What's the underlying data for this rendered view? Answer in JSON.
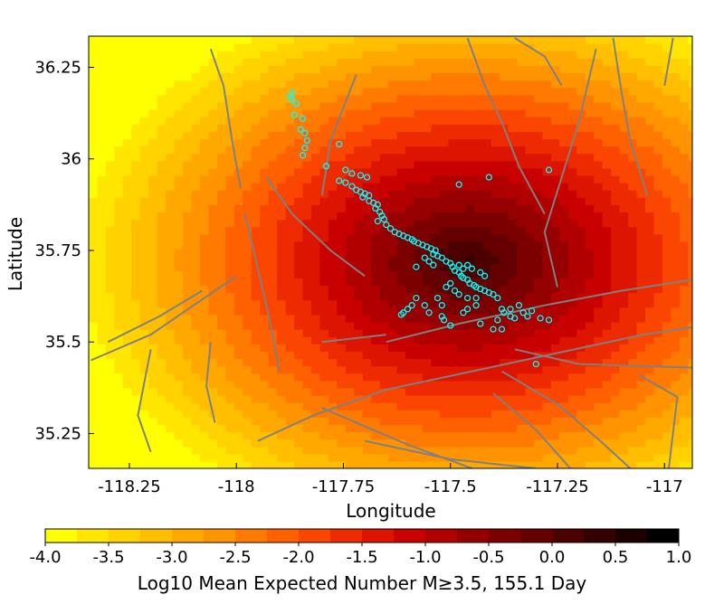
{
  "chart_data": {
    "type": "heatmap",
    "title": "",
    "xlabel": "Longitude",
    "ylabel": "Latitude",
    "xlim": [
      -118.345,
      -116.935
    ],
    "ylim": [
      35.155,
      36.335
    ],
    "x_ticks": [
      -118.25,
      -118,
      -117.75,
      -117.5,
      -117.25,
      -117
    ],
    "x_tick_labels": [
      "-118.25",
      "-118",
      "-117.75",
      "-117.5",
      "-117.25",
      "-117"
    ],
    "y_ticks": [
      35.25,
      35.5,
      35.75,
      36,
      36.25
    ],
    "y_tick_labels": [
      "35.25",
      "35.5",
      "35.75",
      "36",
      "36.25"
    ],
    "field": {
      "peak_lon": -117.46,
      "peak_lat": 35.72,
      "peak_value": 0.3,
      "decay_per_degree": 5.5,
      "floor_value": -4.0,
      "cell_size_deg": 0.02
    },
    "colorbar": {
      "label": "Log10 Mean Expected Number M≥3.5, 155.1 Day",
      "min": -4.0,
      "max": 1.0,
      "tick_values": [
        -4.0,
        -3.5,
        -3.0,
        -2.5,
        -2.0,
        -1.5,
        -1.0,
        -0.5,
        0.0,
        0.5,
        1.0
      ],
      "tick_labels": [
        "-4.0",
        "-3.5",
        "-3.0",
        "-2.5",
        "-2.0",
        "-1.5",
        "-1.0",
        "-0.5",
        "0.0",
        "0.5",
        "1.0"
      ],
      "colors": [
        "#ffff00",
        "#ffe600",
        "#ffd200",
        "#ffbe00",
        "#ffa800",
        "#ff9400",
        "#ff7a00",
        "#ff6000",
        "#fa4600",
        "#ee2a00",
        "#dd1400",
        "#c80000",
        "#b00000",
        "#960000",
        "#7c0000",
        "#640000",
        "#4c0000",
        "#340000",
        "#1c0000",
        "#000000"
      ]
    },
    "fault_color": "#808080",
    "aftershock_color": "#00ffff",
    "fault_traces": [
      [
        [
          -118.34,
          35.45
        ],
        [
          -118.2,
          35.52
        ],
        [
          -118.1,
          35.6
        ],
        [
          -118.0,
          35.68
        ]
      ],
      [
        [
          -118.3,
          35.5
        ],
        [
          -118.18,
          35.57
        ],
        [
          -118.08,
          35.64
        ]
      ],
      [
        [
          -117.95,
          35.23
        ],
        [
          -117.82,
          35.3
        ],
        [
          -117.65,
          35.37
        ],
        [
          -117.45,
          35.42
        ],
        [
          -117.25,
          35.47
        ],
        [
          -117.05,
          35.52
        ],
        [
          -116.935,
          35.54
        ]
      ],
      [
        [
          -117.35,
          35.48
        ],
        [
          -117.2,
          35.44
        ],
        [
          -116.935,
          35.43
        ]
      ],
      [
        [
          -117.8,
          35.32
        ],
        [
          -117.72,
          35.28
        ],
        [
          -117.6,
          35.22
        ],
        [
          -117.45,
          35.155
        ]
      ],
      [
        [
          -117.7,
          35.23
        ],
        [
          -117.5,
          35.18
        ],
        [
          -117.3,
          35.155
        ]
      ],
      [
        [
          -117.38,
          35.42
        ],
        [
          -117.25,
          35.33
        ],
        [
          -117.15,
          35.23
        ],
        [
          -117.08,
          35.155
        ]
      ],
      [
        [
          -117.4,
          35.36
        ],
        [
          -117.3,
          35.26
        ],
        [
          -117.22,
          35.155
        ]
      ],
      [
        [
          -116.97,
          35.35
        ],
        [
          -116.99,
          35.155
        ]
      ],
      [
        [
          -117.06,
          35.41
        ],
        [
          -116.97,
          35.35
        ]
      ],
      [
        [
          -117.65,
          35.5
        ],
        [
          -117.48,
          35.55
        ],
        [
          -117.28,
          35.6
        ],
        [
          -117.1,
          35.64
        ],
        [
          -116.935,
          35.67
        ]
      ],
      [
        [
          -117.8,
          35.5
        ],
        [
          -117.65,
          35.52
        ]
      ],
      [
        [
          -117.98,
          35.85
        ],
        [
          -117.95,
          35.7
        ],
        [
          -117.92,
          35.55
        ],
        [
          -117.9,
          35.42
        ]
      ],
      [
        [
          -117.93,
          35.95
        ],
        [
          -117.87,
          35.85
        ],
        [
          -117.78,
          35.75
        ],
        [
          -117.7,
          35.68
        ]
      ],
      [
        [
          -118.06,
          36.3
        ],
        [
          -118.03,
          36.2
        ],
        [
          -118.01,
          36.05
        ],
        [
          -117.99,
          35.92
        ]
      ],
      [
        [
          -117.72,
          36.23
        ],
        [
          -117.78,
          36.05
        ],
        [
          -117.8,
          35.9
        ]
      ],
      [
        [
          -117.46,
          36.33
        ],
        [
          -117.42,
          36.2
        ],
        [
          -117.38,
          36.1
        ],
        [
          -117.34,
          35.98
        ],
        [
          -117.28,
          35.85
        ]
      ],
      [
        [
          -117.35,
          36.33
        ],
        [
          -117.28,
          36.28
        ],
        [
          -117.24,
          36.2
        ]
      ],
      [
        [
          -117.12,
          36.33
        ],
        [
          -117.1,
          36.18
        ],
        [
          -117.08,
          36.05
        ],
        [
          -117.04,
          35.9
        ]
      ],
      [
        [
          -117.16,
          36.3
        ],
        [
          -117.2,
          36.1
        ],
        [
          -117.24,
          35.95
        ],
        [
          -117.28,
          35.8
        ],
        [
          -117.25,
          35.65
        ]
      ],
      [
        [
          -116.98,
          36.33
        ],
        [
          -117.0,
          36.2
        ]
      ],
      [
        [
          -118.06,
          35.5
        ],
        [
          -118.07,
          35.38
        ],
        [
          -118.05,
          35.28
        ]
      ],
      [
        [
          -118.2,
          35.48
        ],
        [
          -118.23,
          35.3
        ],
        [
          -118.2,
          35.2
        ]
      ]
    ],
    "aftershocks": [
      [
        -117.87,
        36.18
      ],
      [
        -117.875,
        36.17
      ],
      [
        -117.87,
        36.16
      ],
      [
        -117.86,
        36.15
      ],
      [
        -117.865,
        36.12
      ],
      [
        -117.845,
        36.11
      ],
      [
        -117.85,
        36.08
      ],
      [
        -117.84,
        36.07
      ],
      [
        -117.835,
        36.05
      ],
      [
        -117.84,
        36.03
      ],
      [
        -117.845,
        36.01
      ],
      [
        -117.76,
        36.04
      ],
      [
        -117.79,
        35.98
      ],
      [
        -117.745,
        35.97
      ],
      [
        -117.73,
        35.96
      ],
      [
        -117.71,
        35.955
      ],
      [
        -117.695,
        35.95
      ],
      [
        -117.76,
        35.94
      ],
      [
        -117.745,
        35.935
      ],
      [
        -117.73,
        35.925
      ],
      [
        -117.72,
        35.915
      ],
      [
        -117.71,
        35.91
      ],
      [
        -117.7,
        35.905
      ],
      [
        -117.69,
        35.9
      ],
      [
        -117.705,
        35.895
      ],
      [
        -117.69,
        35.885
      ],
      [
        -117.68,
        35.88
      ],
      [
        -117.67,
        35.875
      ],
      [
        -117.675,
        35.865
      ],
      [
        -117.665,
        35.855
      ],
      [
        -117.66,
        35.845
      ],
      [
        -117.655,
        35.835
      ],
      [
        -117.67,
        35.83
      ],
      [
        -117.65,
        35.82
      ],
      [
        -117.64,
        35.81
      ],
      [
        -117.63,
        35.8
      ],
      [
        -117.62,
        35.795
      ],
      [
        -117.61,
        35.79
      ],
      [
        -117.6,
        35.785
      ],
      [
        -117.59,
        35.78
      ],
      [
        -117.585,
        35.775
      ],
      [
        -117.575,
        35.77
      ],
      [
        -117.565,
        35.765
      ],
      [
        -117.555,
        35.76
      ],
      [
        -117.545,
        35.755
      ],
      [
        -117.535,
        35.75
      ],
      [
        -117.54,
        35.74
      ],
      [
        -117.53,
        35.735
      ],
      [
        -117.56,
        35.73
      ],
      [
        -117.55,
        35.72
      ],
      [
        -117.54,
        35.71
      ],
      [
        -117.58,
        35.705
      ],
      [
        -117.52,
        35.73
      ],
      [
        -117.51,
        35.72
      ],
      [
        -117.5,
        35.715
      ],
      [
        -117.495,
        35.705
      ],
      [
        -117.49,
        35.695
      ],
      [
        -117.48,
        35.69
      ],
      [
        -117.475,
        35.68
      ],
      [
        -117.47,
        35.675
      ],
      [
        -117.46,
        35.67
      ],
      [
        -117.455,
        35.66
      ],
      [
        -117.445,
        35.655
      ],
      [
        -117.44,
        35.65
      ],
      [
        -117.43,
        35.645
      ],
      [
        -117.42,
        35.64
      ],
      [
        -117.41,
        35.635
      ],
      [
        -117.4,
        35.63
      ],
      [
        -117.39,
        35.62
      ],
      [
        -117.5,
        35.66
      ],
      [
        -117.51,
        35.65
      ],
      [
        -117.49,
        35.64
      ],
      [
        -117.48,
        35.63
      ],
      [
        -117.53,
        35.62
      ],
      [
        -117.46,
        35.62
      ],
      [
        -117.44,
        35.62
      ],
      [
        -117.47,
        35.7
      ],
      [
        -117.45,
        35.7
      ],
      [
        -117.43,
        35.69
      ],
      [
        -117.42,
        35.68
      ],
      [
        -117.48,
        35.71
      ],
      [
        -117.46,
        35.71
      ],
      [
        -117.58,
        35.62
      ],
      [
        -117.59,
        35.6
      ],
      [
        -117.6,
        35.59
      ],
      [
        -117.61,
        35.58
      ],
      [
        -117.615,
        35.575
      ],
      [
        -117.56,
        35.6
      ],
      [
        -117.55,
        35.58
      ],
      [
        -117.52,
        35.57
      ],
      [
        -117.515,
        35.56
      ],
      [
        -117.5,
        35.545
      ],
      [
        -117.46,
        35.59
      ],
      [
        -117.44,
        35.6
      ],
      [
        -117.38,
        35.59
      ],
      [
        -117.375,
        35.58
      ],
      [
        -117.36,
        35.57
      ],
      [
        -117.35,
        35.565
      ],
      [
        -117.36,
        35.59
      ],
      [
        -117.34,
        35.6
      ],
      [
        -117.33,
        35.58
      ],
      [
        -117.32,
        35.57
      ],
      [
        -117.31,
        35.585
      ],
      [
        -117.29,
        35.565
      ],
      [
        -117.27,
        35.56
      ],
      [
        -117.39,
        35.56
      ],
      [
        -117.4,
        35.535
      ],
      [
        -117.38,
        35.535
      ],
      [
        -117.52,
        35.6
      ],
      [
        -117.47,
        35.58
      ],
      [
        -117.43,
        35.55
      ],
      [
        -117.41,
        35.95
      ],
      [
        -117.27,
        35.97
      ],
      [
        -117.48,
        35.93
      ],
      [
        -117.3,
        35.44
      ]
    ]
  }
}
